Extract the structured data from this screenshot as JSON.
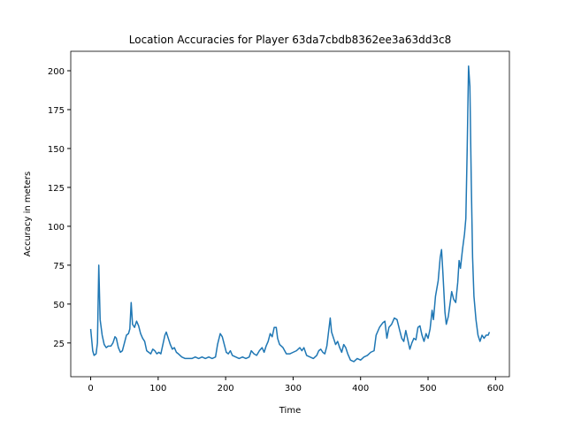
{
  "chart_data": {
    "type": "line",
    "title": "Location Accuracies for Player 63da7cbdb8362ee3a63dd3c8",
    "x_label": "Time",
    "y_label": "Accuracy in meters",
    "x": [
      0,
      3,
      5,
      8,
      10,
      12,
      14,
      17,
      20,
      23,
      26,
      30,
      33,
      36,
      38,
      41,
      44,
      47,
      50,
      53,
      56,
      58,
      60,
      62,
      65,
      68,
      71,
      74,
      77,
      80,
      83,
      86,
      89,
      92,
      95,
      98,
      101,
      104,
      107,
      110,
      112,
      115,
      118,
      121,
      124,
      127,
      130,
      135,
      140,
      150,
      155,
      160,
      165,
      170,
      175,
      180,
      185,
      188,
      192,
      195,
      198,
      201,
      204,
      207,
      210,
      215,
      220,
      225,
      230,
      235,
      238,
      242,
      246,
      250,
      254,
      257,
      260,
      263,
      266,
      269,
      272,
      275,
      277,
      280,
      285,
      290,
      295,
      300,
      305,
      310,
      313,
      316,
      320,
      325,
      330,
      335,
      338,
      341,
      344,
      347,
      350,
      355,
      357,
      360,
      363,
      366,
      369,
      372,
      375,
      378,
      381,
      385,
      390,
      395,
      400,
      405,
      410,
      415,
      420,
      423,
      428,
      433,
      436,
      439,
      442,
      446,
      450,
      454,
      458,
      461,
      464,
      467,
      470,
      473,
      476,
      479,
      482,
      485,
      488,
      491,
      494,
      497,
      500,
      503,
      506,
      508,
      511,
      515,
      518,
      520,
      522,
      525,
      527,
      530,
      535,
      538,
      541,
      544,
      546,
      548,
      551,
      554,
      556,
      558,
      560,
      562,
      564,
      566,
      568,
      571,
      574,
      577,
      580,
      583,
      586,
      589,
      591
    ],
    "series": [
      {
        "name": "Accuracy",
        "color": "#1f77b4",
        "values": [
          34,
          20,
          17,
          18,
          25,
          75,
          40,
          30,
          24,
          22,
          23,
          23,
          25,
          29,
          28,
          22,
          19,
          20,
          25,
          30,
          31,
          34,
          51,
          37,
          35,
          39,
          36,
          31,
          28,
          26,
          20,
          19,
          18,
          21,
          20,
          18,
          19,
          18,
          24,
          30,
          32,
          28,
          24,
          21,
          22,
          19,
          18,
          16,
          15,
          15,
          16,
          15,
          16,
          15,
          16,
          15,
          16,
          24,
          31,
          29,
          24,
          19,
          18,
          20,
          17,
          16,
          15,
          16,
          15,
          16,
          20,
          18,
          17,
          20,
          22,
          19,
          23,
          26,
          31,
          29,
          35,
          35,
          28,
          24,
          22,
          18,
          18,
          19,
          20,
          22,
          20,
          22,
          17,
          16,
          15,
          17,
          20,
          21,
          19,
          18,
          23,
          41,
          32,
          28,
          24,
          26,
          22,
          19,
          24,
          22,
          18,
          14,
          13,
          15,
          14,
          16,
          17,
          19,
          20,
          30,
          35,
          38,
          39,
          28,
          35,
          37,
          41,
          40,
          33,
          28,
          26,
          33,
          27,
          21,
          25,
          28,
          27,
          35,
          36,
          30,
          26,
          31,
          28,
          34,
          46,
          40,
          55,
          65,
          80,
          85,
          70,
          45,
          37,
          42,
          58,
          53,
          51,
          64,
          78,
          73,
          85,
          95,
          105,
          150,
          203,
          190,
          130,
          80,
          55,
          40,
          30,
          26,
          30,
          28,
          30,
          30,
          32
        ]
      }
    ],
    "xlim": [
      -29.55,
      620.55
    ],
    "ylim": [
      3.3,
      212.5
    ],
    "xticks": [
      0,
      100,
      200,
      300,
      400,
      500,
      600
    ],
    "yticks": [
      25,
      50,
      75,
      100,
      125,
      150,
      175,
      200
    ]
  }
}
